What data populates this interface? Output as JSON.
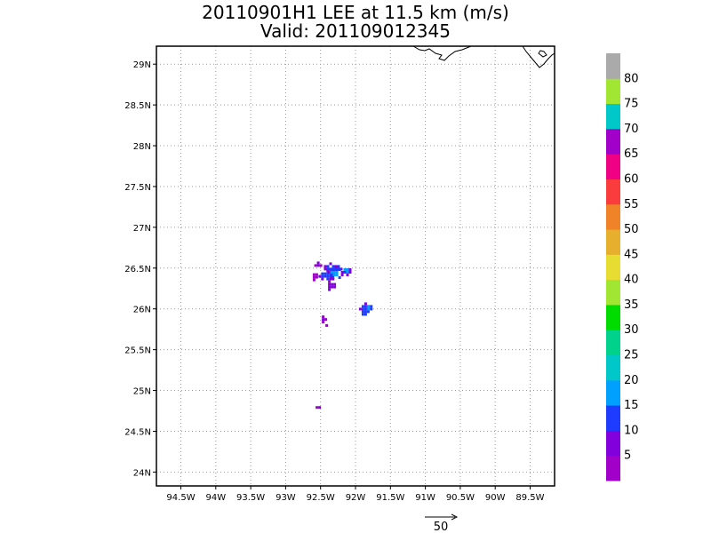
{
  "title": {
    "line1": "20110901H1 LEE at 11.5 km (m/s)",
    "line2": "Valid: 201109012345"
  },
  "chart_data": {
    "type": "heatmap",
    "title": "20110901H1 LEE at 11.5 km (m/s)",
    "subtitle": "Valid: 201109012345",
    "x_tick_labels": [
      "94.5W",
      "94W",
      "93.5W",
      "93W",
      "92.5W",
      "92W",
      "91.5W",
      "91W",
      "90.5W",
      "90W",
      "89.5W"
    ],
    "x_ticks": [
      -94.5,
      -94.0,
      -93.5,
      -93.0,
      -92.5,
      -92.0,
      -91.5,
      -91.0,
      -90.5,
      -90.0,
      -89.5
    ],
    "y_tick_labels": [
      "24N",
      "24.5N",
      "25N",
      "25.5N",
      "26N",
      "26.5N",
      "27N",
      "27.5N",
      "28N",
      "28.5N",
      "29N"
    ],
    "y_ticks": [
      24.0,
      24.5,
      25.0,
      25.5,
      26.0,
      26.5,
      27.0,
      27.5,
      28.0,
      28.5,
      29.0
    ],
    "xlim": [
      -94.85,
      -89.15
    ],
    "ylim": [
      23.83,
      29.22
    ],
    "grid": true,
    "colorbar": {
      "labels": [
        "5",
        "10",
        "15",
        "20",
        "25",
        "30",
        "35",
        "40",
        "45",
        "50",
        "55",
        "60",
        "65",
        "70",
        "75",
        "80"
      ],
      "colors": [
        "#a000c8",
        "#8200dc",
        "#1e3cff",
        "#00a0ff",
        "#00c8c8",
        "#00d28c",
        "#00dc00",
        "#a0e632",
        "#e6dc32",
        "#e6af2d",
        "#f08228",
        "#fa3c3c",
        "#f00082",
        "#a000c8",
        "#00c8c8",
        "#a0e632",
        "#aaaaaa"
      ]
    },
    "echo_patches": [
      {
        "lon": -92.35,
        "lat": 26.52,
        "w": 0.28,
        "h": 0.1,
        "value": 12
      },
      {
        "lon": -92.42,
        "lat": 26.42,
        "w": 0.22,
        "h": 0.12,
        "value": 15
      },
      {
        "lon": -92.3,
        "lat": 26.45,
        "w": 0.2,
        "h": 0.16,
        "value": 18
      },
      {
        "lon": -92.15,
        "lat": 26.48,
        "w": 0.12,
        "h": 0.1,
        "value": 16
      },
      {
        "lon": -92.38,
        "lat": 26.3,
        "w": 0.18,
        "h": 0.1,
        "value": 10
      },
      {
        "lon": -92.6,
        "lat": 26.42,
        "w": 0.1,
        "h": 0.1,
        "value": 6
      },
      {
        "lon": -92.55,
        "lat": 26.55,
        "w": 0.08,
        "h": 0.06,
        "value": 8
      },
      {
        "lon": -91.88,
        "lat": 26.0,
        "w": 0.14,
        "h": 0.16,
        "value": 14
      },
      {
        "lon": -91.82,
        "lat": 26.03,
        "w": 0.1,
        "h": 0.1,
        "value": 18
      },
      {
        "lon": -92.48,
        "lat": 25.88,
        "w": 0.08,
        "h": 0.08,
        "value": 6
      },
      {
        "lon": -92.45,
        "lat": 25.82,
        "w": 0.04,
        "h": 0.05,
        "value": 5
      },
      {
        "lon": -92.56,
        "lat": 24.82,
        "w": 0.1,
        "h": 0.04,
        "value": 6
      }
    ],
    "reference_vector": {
      "label": "50"
    }
  }
}
